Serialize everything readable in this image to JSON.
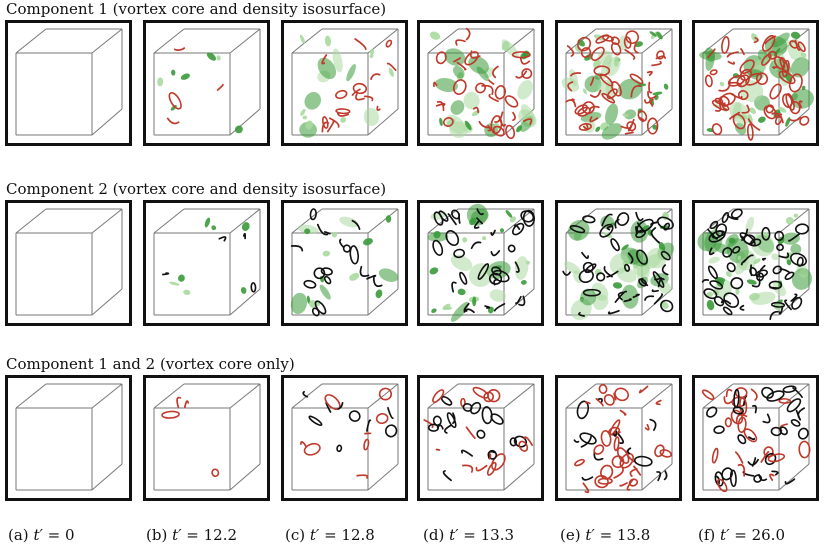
{
  "rows": [
    {
      "title": "Component 1 (vortex core and density isosurface)",
      "mode": "c1"
    },
    {
      "title": "Component 2 (vortex core and density isosurface)",
      "mode": "c2"
    },
    {
      "title": "Component 1 and 2 (vortex core only)",
      "mode": "both"
    }
  ],
  "captions": [
    {
      "label": "(a)",
      "var": "t′",
      "rest": " = 0"
    },
    {
      "label": "(b)",
      "var": "t′",
      "rest": " = 12.2"
    },
    {
      "label": "(c)",
      "var": "t′",
      "rest": " = 12.8"
    },
    {
      "label": "(d)",
      "var": "t′",
      "rest": " = 13.3"
    },
    {
      "label": "(e)",
      "var": "t′",
      "rest": " = 13.8"
    },
    {
      "label": "(f)",
      "var": "t′",
      "rest": " = 26.0"
    }
  ],
  "density": [
    0,
    0.08,
    0.3,
    0.6,
    0.85,
    1.0
  ],
  "colors": {
    "component1_core": "#c0392b",
    "component2_core": "#111111",
    "isosurface": "#3a9a3a",
    "isosurface_light": "#a9d9a0",
    "box_edge": "#777777",
    "frame": "#111111"
  }
}
